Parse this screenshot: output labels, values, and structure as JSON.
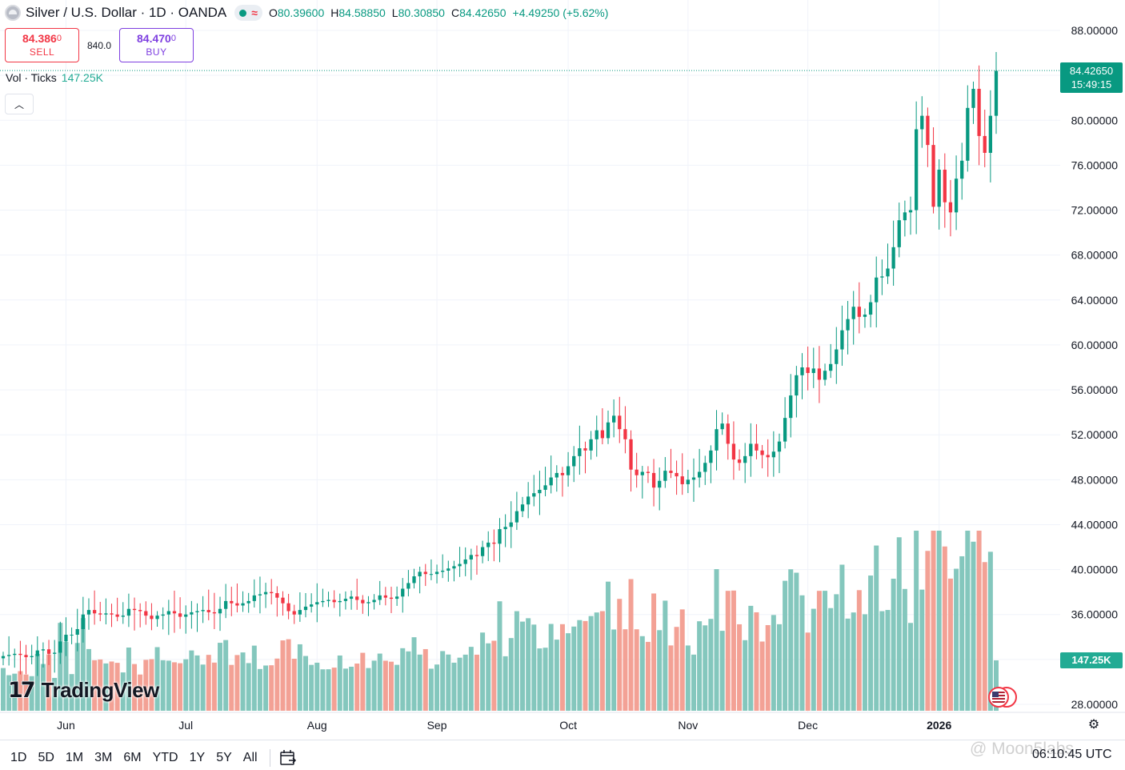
{
  "header": {
    "symbol_title": "Silver / U.S. Dollar · 1D · OANDA",
    "status_icon": "market-open-dot",
    "replay_icon": "wave-icon",
    "ohlc": {
      "o_label": "O",
      "o_value": "80.39600",
      "h_label": "H",
      "h_value": "84.58850",
      "l_label": "L",
      "l_value": "80.30850",
      "c_label": "C",
      "c_value": "84.42650",
      "change": "+4.49250 (+5.62%)"
    }
  },
  "trade": {
    "sell_price_main": "84.386",
    "sell_price_small": "0",
    "sell_label": "SELL",
    "spread": "840.0",
    "buy_price_main": "84.470",
    "buy_price_small": "0",
    "buy_label": "BUY"
  },
  "volume_legend": {
    "label": "Vol · Ticks",
    "value": "147.25K"
  },
  "tags": {
    "last_price": "84.42650",
    "countdown": "15:49:15",
    "last_volume": "147.25K"
  },
  "logo": {
    "text": "TradingView"
  },
  "bottom": {
    "ranges": [
      "1D",
      "5D",
      "1M",
      "3M",
      "6M",
      "YTD",
      "1Y",
      "5Y",
      "All"
    ],
    "clock": "06:10:45 UTC",
    "watermark": "@ Moon5labs"
  },
  "colors": {
    "up": "#089981",
    "down": "#f23645",
    "vol_up": "#84c7bd",
    "vol_down": "#f3a195"
  },
  "chart_data": {
    "type": "candlestick",
    "title": "Silver / U.S. Dollar · 1D · OANDA",
    "y_axis": {
      "min": 28,
      "max": 88,
      "ticks": [
        "88.00000",
        "84.00000",
        "80.00000",
        "76.00000",
        "72.00000",
        "68.00000",
        "64.00000",
        "60.00000",
        "56.00000",
        "52.00000",
        "48.00000",
        "44.00000",
        "40.00000",
        "36.00000",
        "32.00000",
        "28.00000"
      ],
      "position": "right"
    },
    "x_axis": {
      "labels": [
        "Jun",
        "Jul",
        "Aug",
        "Sep",
        "Oct",
        "Nov",
        "Dec",
        "2026"
      ],
      "bold_labels": [
        "2026"
      ]
    },
    "grid": true,
    "closes": [
      32.3,
      32.4,
      32.5,
      32.4,
      32.2,
      32.3,
      32.8,
      32.9,
      32.5,
      32.6,
      33.6,
      34.2,
      34.2,
      34.7,
      36.0,
      36.4,
      36.1,
      36.0,
      36.1,
      36.0,
      35.8,
      35.9,
      36.5,
      36.4,
      36.3,
      35.9,
      35.6,
      35.9,
      36.0,
      36.3,
      36.1,
      35.8,
      36.0,
      36.2,
      36.3,
      36.4,
      36.2,
      36.1,
      36.5,
      37.2,
      37.0,
      36.8,
      37.0,
      37.2,
      37.7,
      37.8,
      38.0,
      37.9,
      37.5,
      37.0,
      36.3,
      36.0,
      36.4,
      36.7,
      36.9,
      37.1,
      37.2,
      37.3,
      37.1,
      37.2,
      37.4,
      37.6,
      37.3,
      37.0,
      37.1,
      37.3,
      37.7,
      37.5,
      37.4,
      37.6,
      38.3,
      38.8,
      39.4,
      39.8,
      39.6,
      39.6,
      39.8,
      39.9,
      40.1,
      40.3,
      40.5,
      40.9,
      41.3,
      41.2,
      42.0,
      42.4,
      42.3,
      43.6,
      43.8,
      44.2,
      45.2,
      45.8,
      46.5,
      46.8,
      47.1,
      47.5,
      48.2,
      48.6,
      48.4,
      49.2,
      50.1,
      50.8,
      50.6,
      51.6,
      52.4,
      51.7,
      53.1,
      53.7,
      52.5,
      51.6,
      48.9,
      48.4,
      48.7,
      48.6,
      47.3,
      47.9,
      48.8,
      48.6,
      48.3,
      47.6,
      48.0,
      48.2,
      48.7,
      49.5,
      50.6,
      52.5,
      53.0,
      51.2,
      49.8,
      49.5,
      50.1,
      51.2,
      50.6,
      50.2,
      50.0,
      50.5,
      51.4,
      53.5,
      55.5,
      57.3,
      58.0,
      57.5,
      57.9,
      56.9,
      57.7,
      58.3,
      59.6,
      61.3,
      62.3,
      63.4,
      62.5,
      62.7,
      63.8,
      66.0,
      66.1,
      66.8,
      68.7,
      71.1,
      71.8,
      72.0,
      79.2,
      80.4,
      77.8,
      72.3,
      75.6,
      72.7,
      71.8,
      74.8,
      76.4,
      81.1,
      82.8,
      78.6,
      77.1,
      80.4,
      84.4
    ],
    "volume_ticks_last": 147.25,
    "volume_unit": "K"
  }
}
